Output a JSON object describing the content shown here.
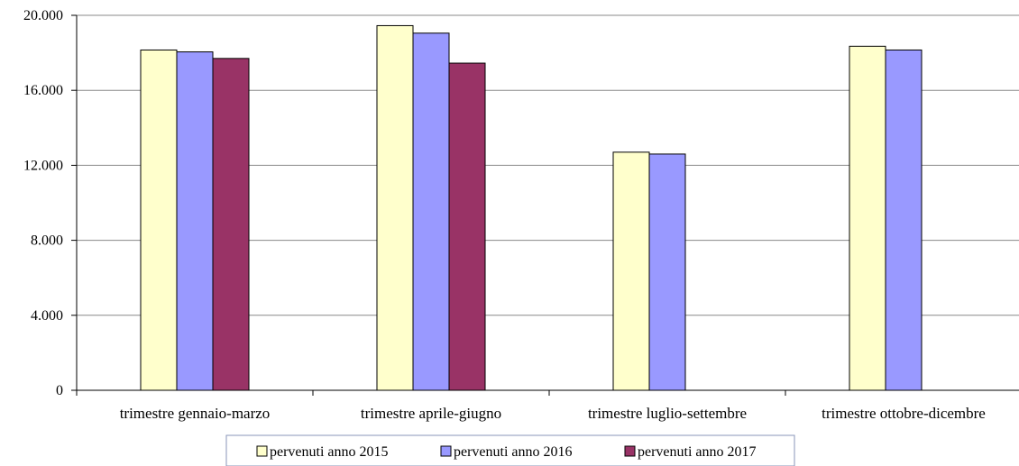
{
  "chart_data": {
    "type": "bar",
    "title": "",
    "xlabel": "",
    "ylabel": "",
    "categories": [
      "trimestre gennaio-marzo",
      "trimestre aprile-giugno",
      "trimestre luglio-settembre",
      "trimestre ottobre-dicembre"
    ],
    "series": [
      {
        "name": "pervenuti anno 2015",
        "color": "#ffffcc",
        "values": [
          18150,
          19450,
          12700,
          18350
        ]
      },
      {
        "name": "pervenuti anno 2016",
        "color": "#9999ff",
        "values": [
          18050,
          19050,
          12600,
          18150
        ]
      },
      {
        "name": "pervenuti anno 2017",
        "color": "#993366",
        "values": [
          17700,
          17450,
          null,
          null
        ]
      }
    ],
    "ylim": [
      0,
      20000
    ],
    "yticks": [
      0,
      4000,
      8000,
      12000,
      16000,
      20000
    ],
    "ytick_labels": [
      "0",
      "4.000",
      "8.000",
      "12.000",
      "16.000",
      "20.000"
    ],
    "grid": true,
    "legend_position": "bottom"
  }
}
